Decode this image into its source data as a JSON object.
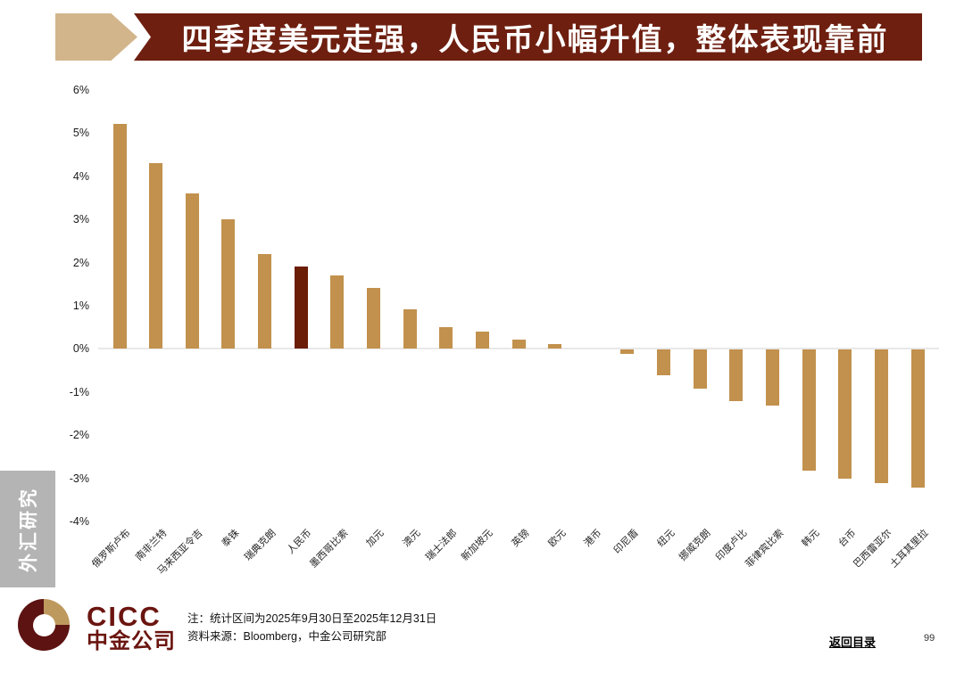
{
  "title": {
    "text": "四季度美元走强，人民币小幅升值，整体表现靠前"
  },
  "sidebar": {
    "label": "外汇研究"
  },
  "chart_data": {
    "type": "bar",
    "title": "四季度美元走强，人民币小幅升值，整体表现靠前",
    "xlabel": "",
    "ylabel": "",
    "unit": "%",
    "ylim": [
      -4,
      6
    ],
    "grid": "zero-line-only",
    "legend": "none",
    "categories": [
      "俄罗斯卢布",
      "南非兰特",
      "马来西亚令吉",
      "泰铢",
      "瑞典克朗",
      "人民币",
      "墨西哥比索",
      "加元",
      "澳元",
      "瑞士法郎",
      "新加坡元",
      "英镑",
      "欧元",
      "港币",
      "印尼盾",
      "纽元",
      "挪威克朗",
      "印度卢比",
      "菲律宾比索",
      "韩元",
      "台币",
      "巴西雷亚尔",
      "土耳其里拉"
    ],
    "values": [
      5.2,
      4.3,
      3.6,
      3.0,
      2.2,
      1.9,
      1.7,
      1.4,
      0.9,
      0.5,
      0.4,
      0.2,
      0.1,
      0.0,
      -0.1,
      -0.6,
      -0.9,
      -1.2,
      -1.3,
      -2.8,
      -3.0,
      -3.1,
      -3.2
    ],
    "highlight_category": "人民币",
    "highlight_index": 5,
    "bar_color": "#c2914d",
    "highlight_color": "#6b1d05",
    "yticks": [
      {
        "label": "6%",
        "value": 6
      },
      {
        "label": "5%",
        "value": 5
      },
      {
        "label": "4%",
        "value": 4
      },
      {
        "label": "3%",
        "value": 3
      },
      {
        "label": "2%",
        "value": 2
      },
      {
        "label": "1%",
        "value": 1
      },
      {
        "label": "0%",
        "value": 0
      },
      {
        "label": "-1%",
        "value": -1
      },
      {
        "label": "-2%",
        "value": -2
      },
      {
        "label": "-3%",
        "value": -3
      },
      {
        "label": "-4%",
        "value": -4
      }
    ]
  },
  "footer": {
    "logo_text_en": "CICC",
    "logo_text_cn": "中金公司",
    "note_line1": "注：统计区间为2025年9月30日至2025年12月31日",
    "note_line2": "资料来源：Bloomberg，中金公司研究部",
    "back_link": "返回目录",
    "page_number": "99"
  },
  "colors": {
    "banner_bg": "#6e1f10",
    "arrow_tan": "#d3b58c",
    "bar_gold": "#c2914d",
    "bar_highlight": "#6b1d05",
    "sidebar_gray": "#b4b4b4",
    "logo_maroon": "#5c1312",
    "logo_gold": "#bd995e",
    "zero_line": "#e8e8e8"
  }
}
